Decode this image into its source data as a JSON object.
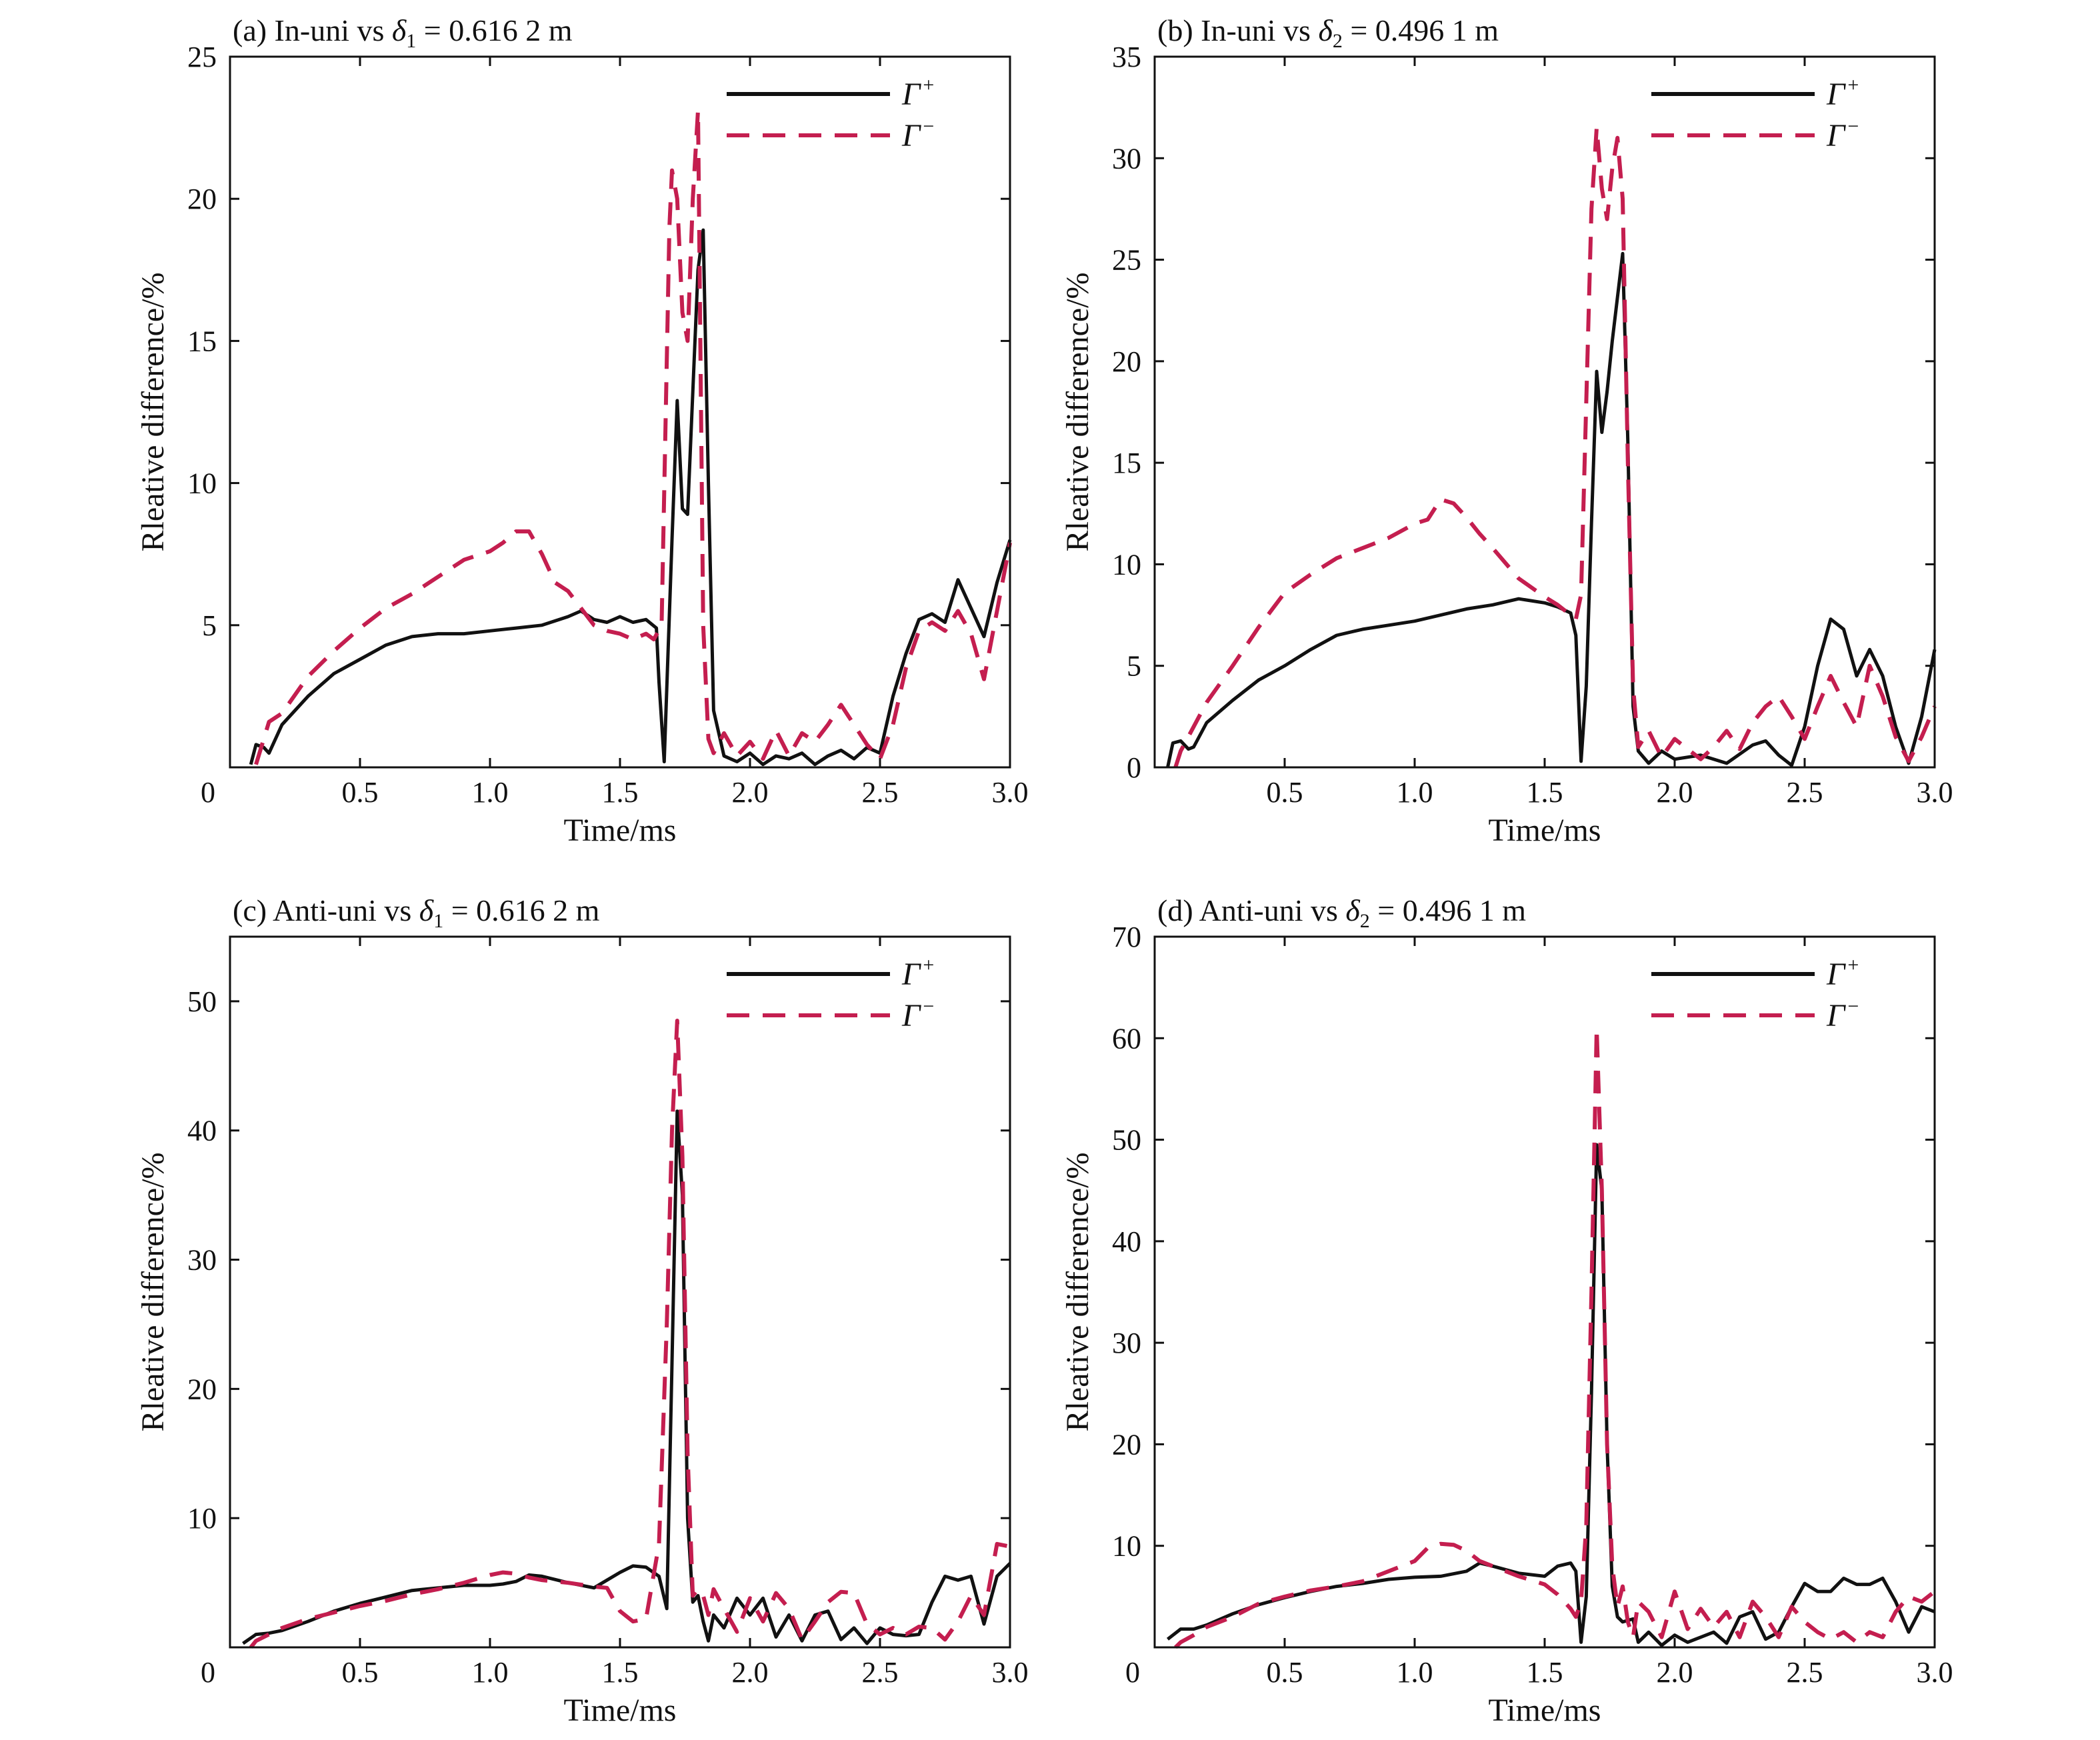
{
  "colors": {
    "gamma_plus": "#111111",
    "gamma_minus": "#c41e4f",
    "axes": "#111111"
  },
  "chart_data": [
    {
      "type": "line",
      "title": {
        "prefix": "(a) In-uni vs ",
        "sym": "δ",
        "sub": "1",
        "suffix": " = 0.616 2 m"
      },
      "xlabel": "Time/ms",
      "ylabel": "Rleative difference/%",
      "xlim": [
        0,
        3.0
      ],
      "ylim": [
        0,
        25
      ],
      "xticks": [
        "0",
        "0.5",
        "1.0",
        "1.5",
        "2.0",
        "2.5",
        "3.0"
      ],
      "yticks": [
        "5",
        "10",
        "15",
        "20",
        "25"
      ],
      "legend": {
        "position": "top-right",
        "plus": "Γ",
        "plus_sup": "+",
        "minus": "Γ",
        "minus_sup": "−"
      },
      "series": [
        {
          "name": "Γ+",
          "style": "solid",
          "x": [
            0.08,
            0.1,
            0.13,
            0.15,
            0.2,
            0.3,
            0.4,
            0.5,
            0.6,
            0.7,
            0.8,
            0.9,
            1.0,
            1.1,
            1.2,
            1.3,
            1.35,
            1.4,
            1.45,
            1.5,
            1.55,
            1.6,
            1.64,
            1.65,
            1.67,
            1.7,
            1.72,
            1.74,
            1.76,
            1.8,
            1.82,
            1.84,
            1.86,
            1.9,
            1.95,
            2.0,
            2.05,
            2.1,
            2.15,
            2.2,
            2.25,
            2.3,
            2.35,
            2.4,
            2.45,
            2.5,
            2.55,
            2.6,
            2.65,
            2.7,
            2.75,
            2.8,
            2.85,
            2.9,
            2.95,
            3.0
          ],
          "y": [
            0.1,
            0.8,
            0.7,
            0.5,
            1.5,
            2.5,
            3.3,
            3.8,
            4.3,
            4.6,
            4.7,
            4.7,
            4.8,
            4.9,
            5.0,
            5.3,
            5.5,
            5.2,
            5.1,
            5.3,
            5.1,
            5.2,
            4.9,
            3.0,
            0.2,
            8.0,
            12.9,
            9.1,
            8.9,
            17.5,
            18.9,
            10.0,
            2.0,
            0.4,
            0.2,
            0.5,
            0.1,
            0.4,
            0.3,
            0.5,
            0.1,
            0.4,
            0.6,
            0.3,
            0.7,
            0.5,
            2.5,
            4.0,
            5.2,
            5.4,
            5.1,
            6.6,
            5.6,
            4.6,
            6.5,
            8.0
          ]
        },
        {
          "name": "Γ−",
          "style": "dashed",
          "x": [
            0.1,
            0.15,
            0.2,
            0.3,
            0.4,
            0.5,
            0.6,
            0.7,
            0.8,
            0.9,
            1.0,
            1.05,
            1.1,
            1.15,
            1.2,
            1.25,
            1.3,
            1.4,
            1.45,
            1.5,
            1.55,
            1.6,
            1.63,
            1.66,
            1.69,
            1.7,
            1.72,
            1.74,
            1.76,
            1.78,
            1.8,
            1.82,
            1.84,
            1.86,
            1.9,
            1.95,
            2.0,
            2.05,
            2.1,
            2.15,
            2.2,
            2.25,
            2.3,
            2.35,
            2.4,
            2.45,
            2.5,
            2.55,
            2.6,
            2.65,
            2.7,
            2.75,
            2.8,
            2.85,
            2.9,
            2.95,
            3.0
          ],
          "y": [
            0.1,
            1.6,
            1.9,
            3.2,
            4.1,
            4.9,
            5.6,
            6.1,
            6.7,
            7.3,
            7.6,
            7.9,
            8.3,
            8.3,
            7.5,
            6.5,
            6.2,
            5.0,
            4.8,
            4.7,
            4.5,
            4.7,
            4.5,
            5.0,
            19.0,
            21.0,
            20.0,
            16.0,
            15.0,
            20.0,
            23.1,
            5.0,
            1.0,
            0.5,
            1.2,
            0.4,
            0.9,
            0.3,
            1.3,
            0.4,
            1.2,
            0.9,
            1.5,
            2.2,
            1.5,
            0.8,
            0.3,
            1.5,
            3.5,
            4.8,
            5.1,
            4.8,
            5.5,
            4.7,
            3.1,
            5.5,
            7.9
          ]
        }
      ]
    },
    {
      "type": "line",
      "title": {
        "prefix": "(b) In-uni vs ",
        "sym": "δ",
        "sub": "2",
        "suffix": " = 0.496 1 m"
      },
      "xlabel": "Time/ms",
      "ylabel": "Rleative difference/%",
      "xlim": [
        0,
        3.0
      ],
      "ylim": [
        0,
        35
      ],
      "xticks": [
        "0.5",
        "1.0",
        "1.5",
        "2.0",
        "2.5",
        "3.0"
      ],
      "yticks": [
        "0",
        "5",
        "10",
        "15",
        "20",
        "25",
        "30",
        "35"
      ],
      "legend": {
        "position": "top-right",
        "plus": "Γ",
        "plus_sup": "+",
        "minus": "Γ",
        "minus_sup": "−"
      },
      "series": [
        {
          "name": "Γ+",
          "style": "solid",
          "x": [
            0.05,
            0.07,
            0.1,
            0.13,
            0.15,
            0.2,
            0.3,
            0.4,
            0.5,
            0.6,
            0.7,
            0.8,
            0.9,
            1.0,
            1.1,
            1.2,
            1.3,
            1.4,
            1.5,
            1.55,
            1.6,
            1.62,
            1.64,
            1.66,
            1.68,
            1.7,
            1.72,
            1.74,
            1.76,
            1.8,
            1.82,
            1.84,
            1.86,
            1.9,
            1.95,
            2.0,
            2.1,
            2.2,
            2.3,
            2.35,
            2.4,
            2.45,
            2.5,
            2.55,
            2.6,
            2.65,
            2.7,
            2.75,
            2.8,
            2.85,
            2.9,
            2.95,
            3.0
          ],
          "y": [
            0.0,
            1.2,
            1.3,
            0.9,
            1.0,
            2.2,
            3.3,
            4.3,
            5.0,
            5.8,
            6.5,
            6.8,
            7.0,
            7.2,
            7.5,
            7.8,
            8.0,
            8.3,
            8.1,
            7.9,
            7.6,
            6.5,
            0.3,
            4.0,
            12.0,
            19.5,
            16.5,
            18.5,
            21.0,
            25.3,
            16.0,
            3.0,
            0.8,
            0.2,
            0.8,
            0.4,
            0.6,
            0.2,
            1.1,
            1.3,
            0.6,
            0.1,
            2.0,
            5.0,
            7.3,
            6.8,
            4.5,
            5.8,
            4.5,
            2.0,
            0.2,
            2.5,
            5.8
          ]
        },
        {
          "name": "Γ−",
          "style": "dashed",
          "x": [
            0.08,
            0.1,
            0.15,
            0.2,
            0.3,
            0.4,
            0.5,
            0.6,
            0.7,
            0.8,
            0.9,
            1.0,
            1.05,
            1.1,
            1.15,
            1.2,
            1.25,
            1.3,
            1.4,
            1.5,
            1.55,
            1.6,
            1.62,
            1.64,
            1.66,
            1.68,
            1.7,
            1.72,
            1.74,
            1.76,
            1.78,
            1.8,
            1.82,
            1.84,
            1.86,
            1.9,
            1.95,
            2.0,
            2.1,
            2.15,
            2.2,
            2.25,
            2.3,
            2.35,
            2.4,
            2.45,
            2.5,
            2.55,
            2.6,
            2.65,
            2.7,
            2.75,
            2.8,
            2.85,
            2.9,
            2.95,
            3.0
          ],
          "y": [
            0.0,
            0.8,
            2.0,
            3.2,
            5.0,
            6.9,
            8.6,
            9.5,
            10.3,
            10.8,
            11.3,
            12.0,
            12.2,
            13.2,
            13.0,
            12.3,
            11.5,
            10.8,
            9.3,
            8.4,
            8.0,
            7.5,
            7.3,
            8.5,
            18.0,
            27.5,
            31.5,
            28.5,
            27.0,
            29.5,
            31.0,
            28.0,
            15.0,
            4.0,
            1.0,
            1.8,
            0.5,
            1.4,
            0.4,
            1.0,
            1.8,
            0.9,
            2.2,
            3.0,
            3.5,
            2.5,
            1.4,
            3.0,
            4.5,
            3.2,
            2.0,
            5.0,
            3.5,
            1.5,
            0.3,
            1.5,
            3.0
          ]
        }
      ]
    },
    {
      "type": "line",
      "title": {
        "prefix": "(c) Anti-uni vs ",
        "sym": "δ",
        "sub": "1",
        "suffix": " = 0.616 2 m"
      },
      "xlabel": "Time/ms",
      "ylabel": "Rleative difference/%",
      "xlim": [
        0,
        3.0
      ],
      "ylim": [
        0,
        55
      ],
      "xticks": [
        "0",
        "0.5",
        "1.0",
        "1.5",
        "2.0",
        "2.5",
        "3.0"
      ],
      "yticks": [
        "10",
        "20",
        "30",
        "40",
        "50"
      ],
      "legend": {
        "position": "top-right",
        "plus": "Γ",
        "plus_sup": "+",
        "minus": "Γ",
        "minus_sup": "−"
      },
      "series": [
        {
          "name": "Γ+",
          "style": "solid",
          "x": [
            0.05,
            0.1,
            0.15,
            0.2,
            0.3,
            0.4,
            0.5,
            0.6,
            0.7,
            0.8,
            0.9,
            1.0,
            1.05,
            1.1,
            1.15,
            1.2,
            1.3,
            1.4,
            1.45,
            1.5,
            1.55,
            1.6,
            1.65,
            1.68,
            1.7,
            1.72,
            1.74,
            1.76,
            1.78,
            1.8,
            1.82,
            1.84,
            1.86,
            1.9,
            1.95,
            2.0,
            2.05,
            2.1,
            2.15,
            2.2,
            2.25,
            2.3,
            2.35,
            2.4,
            2.45,
            2.5,
            2.55,
            2.6,
            2.65,
            2.7,
            2.75,
            2.8,
            2.85,
            2.9,
            2.95,
            3.0
          ],
          "y": [
            0.3,
            1.0,
            1.1,
            1.3,
            2.0,
            2.8,
            3.4,
            3.9,
            4.4,
            4.6,
            4.8,
            4.8,
            4.9,
            5.1,
            5.6,
            5.5,
            5.0,
            4.6,
            5.2,
            5.8,
            6.3,
            6.2,
            5.5,
            3.0,
            22.0,
            41.5,
            35.0,
            10.0,
            3.5,
            4.0,
            2.0,
            0.5,
            2.5,
            1.5,
            3.8,
            2.5,
            3.8,
            0.8,
            2.5,
            0.5,
            2.5,
            2.8,
            0.6,
            1.5,
            0.3,
            1.5,
            1.0,
            0.9,
            1.0,
            3.5,
            5.5,
            5.2,
            5.5,
            1.8,
            5.5,
            6.5
          ]
        },
        {
          "name": "Γ−",
          "style": "dashed",
          "x": [
            0.08,
            0.1,
            0.15,
            0.2,
            0.3,
            0.4,
            0.5,
            0.6,
            0.7,
            0.8,
            0.9,
            1.0,
            1.05,
            1.1,
            1.15,
            1.2,
            1.3,
            1.4,
            1.45,
            1.5,
            1.55,
            1.6,
            1.65,
            1.68,
            1.7,
            1.72,
            1.74,
            1.76,
            1.78,
            1.8,
            1.82,
            1.84,
            1.86,
            1.9,
            1.95,
            2.0,
            2.05,
            2.1,
            2.15,
            2.2,
            2.25,
            2.3,
            2.35,
            2.4,
            2.45,
            2.5,
            2.55,
            2.6,
            2.65,
            2.7,
            2.75,
            2.8,
            2.85,
            2.9,
            2.95,
            3.0
          ],
          "y": [
            0.0,
            0.5,
            1.0,
            1.5,
            2.2,
            2.7,
            3.2,
            3.6,
            4.1,
            4.5,
            5.0,
            5.6,
            5.8,
            5.7,
            5.4,
            5.2,
            5.0,
            4.7,
            4.6,
            2.8,
            2.0,
            2.2,
            8.0,
            25.0,
            40.0,
            48.5,
            38.0,
            15.0,
            4.0,
            4.5,
            4.0,
            2.5,
            4.5,
            3.0,
            1.2,
            3.8,
            2.0,
            4.2,
            3.0,
            0.6,
            2.0,
            3.5,
            4.3,
            4.2,
            1.8,
            1.0,
            1.5,
            1.0,
            1.6,
            1.5,
            0.6,
            2.0,
            4.0,
            2.5,
            8.0,
            7.8
          ]
        }
      ]
    },
    {
      "type": "line",
      "title": {
        "prefix": "(d) Anti-uni vs ",
        "sym": "δ",
        "sub": "2",
        "suffix": " = 0.496 1 m"
      },
      "xlabel": "Time/ms",
      "ylabel": "Rleative difference/%",
      "xlim": [
        0,
        3.0
      ],
      "ylim": [
        0,
        70
      ],
      "xticks": [
        "0",
        "0.5",
        "1.0",
        "1.5",
        "2.0",
        "2.5",
        "3.0"
      ],
      "yticks": [
        "10",
        "20",
        "30",
        "40",
        "50",
        "60",
        "70"
      ],
      "legend": {
        "position": "top-right",
        "plus": "Γ",
        "plus_sup": "+",
        "minus": "Γ",
        "minus_sup": "−"
      },
      "series": [
        {
          "name": "Γ+",
          "style": "solid",
          "x": [
            0.05,
            0.1,
            0.15,
            0.2,
            0.3,
            0.4,
            0.5,
            0.6,
            0.7,
            0.8,
            0.9,
            1.0,
            1.1,
            1.2,
            1.25,
            1.3,
            1.4,
            1.5,
            1.55,
            1.6,
            1.62,
            1.64,
            1.66,
            1.68,
            1.7,
            1.72,
            1.74,
            1.76,
            1.78,
            1.8,
            1.84,
            1.86,
            1.9,
            1.95,
            2.0,
            2.05,
            2.1,
            2.15,
            2.2,
            2.25,
            2.3,
            2.35,
            2.4,
            2.45,
            2.5,
            2.55,
            2.6,
            2.65,
            2.7,
            2.75,
            2.8,
            2.85,
            2.9,
            2.95,
            3.0
          ],
          "y": [
            0.8,
            1.8,
            1.8,
            2.2,
            3.3,
            4.2,
            4.9,
            5.5,
            6.0,
            6.3,
            6.7,
            6.9,
            7.0,
            7.5,
            8.3,
            8.0,
            7.3,
            7.0,
            8.0,
            8.3,
            7.5,
            0.5,
            5.0,
            25.0,
            49.5,
            45.0,
            20.0,
            6.0,
            3.0,
            2.5,
            2.8,
            0.5,
            1.5,
            0.2,
            1.2,
            0.5,
            1.0,
            1.5,
            0.4,
            3.0,
            3.5,
            0.8,
            1.5,
            4.0,
            6.3,
            5.5,
            5.5,
            6.8,
            6.2,
            6.2,
            6.8,
            4.5,
            1.5,
            4.0,
            3.5
          ]
        },
        {
          "name": "Γ−",
          "style": "dashed",
          "x": [
            0.08,
            0.1,
            0.15,
            0.2,
            0.3,
            0.4,
            0.5,
            0.6,
            0.7,
            0.8,
            0.9,
            1.0,
            1.05,
            1.1,
            1.15,
            1.2,
            1.25,
            1.3,
            1.4,
            1.5,
            1.55,
            1.6,
            1.62,
            1.64,
            1.66,
            1.68,
            1.7,
            1.72,
            1.74,
            1.76,
            1.78,
            1.8,
            1.82,
            1.84,
            1.86,
            1.9,
            1.95,
            2.0,
            2.05,
            2.1,
            2.15,
            2.2,
            2.25,
            2.3,
            2.35,
            2.4,
            2.45,
            2.5,
            2.55,
            2.6,
            2.65,
            2.7,
            2.75,
            2.8,
            2.85,
            2.9,
            2.95,
            3.0
          ],
          "y": [
            0.0,
            0.5,
            1.2,
            2.0,
            3.0,
            4.3,
            5.0,
            5.6,
            6.0,
            6.5,
            7.5,
            8.5,
            9.8,
            10.2,
            10.1,
            9.5,
            8.5,
            8.0,
            7.0,
            6.2,
            5.2,
            3.8,
            3.0,
            4.5,
            12.0,
            35.0,
            61.0,
            45.0,
            20.0,
            8.0,
            4.0,
            6.0,
            2.5,
            1.0,
            4.5,
            3.5,
            1.0,
            5.5,
            1.8,
            3.8,
            2.0,
            3.5,
            1.0,
            4.5,
            3.0,
            1.0,
            4.0,
            2.5,
            1.5,
            0.8,
            1.5,
            0.5,
            1.5,
            1.0,
            3.5,
            5.0,
            4.5,
            5.5
          ]
        }
      ]
    }
  ]
}
